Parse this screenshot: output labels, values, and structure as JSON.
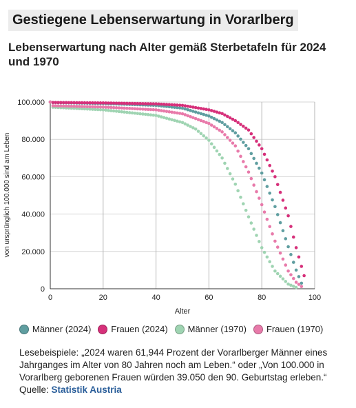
{
  "title": "Gestiegene Lebenserwartung in Vorarlberg",
  "subtitle": "Lebenserwartung nach Alter gemäß Sterbetafeln für 2024 und 1970",
  "note": {
    "text": "Lesebeispiele: „2024 waren 61,944 Prozent der Vorarlberger Männer eines Jahrganges im Alter von 80 Jahren noch am Leben.“ oder „Von 100.000 in Vorarlberg geborenen Frauen würden 39.050 den 90. Geburtstag erleben.“ Quelle: ",
    "source": "Statistik Austria"
  },
  "chart_data": {
    "type": "scatter",
    "xlabel": "Alter",
    "ylabel": "von ursprünglich 100.000 sind am Leben",
    "xlim": [
      0,
      100
    ],
    "ylim": [
      0,
      100000
    ],
    "xticks": [
      "0",
      "20",
      "40",
      "60",
      "80",
      "100"
    ],
    "yticks": [
      "0",
      "20.000",
      "40.000",
      "60.000",
      "80.000",
      "100.000"
    ],
    "grid": true,
    "legend_position": "bottom",
    "series": [
      {
        "name": "Männer (2024)",
        "color": "#5f9ea0",
        "knots": [
          [
            0,
            100000
          ],
          [
            1,
            99700
          ],
          [
            20,
            99200
          ],
          [
            40,
            98200
          ],
          [
            50,
            96700
          ],
          [
            60,
            92500
          ],
          [
            65,
            89000
          ],
          [
            70,
            83500
          ],
          [
            75,
            75000
          ],
          [
            80,
            61944
          ],
          [
            85,
            44000
          ],
          [
            90,
            22500
          ],
          [
            93,
            10000
          ],
          [
            95,
            3000
          ]
        ]
      },
      {
        "name": "Frauen (2024)",
        "color": "#d6307a",
        "knots": [
          [
            0,
            100000
          ],
          [
            1,
            99750
          ],
          [
            20,
            99500
          ],
          [
            40,
            99000
          ],
          [
            50,
            98200
          ],
          [
            60,
            95800
          ],
          [
            65,
            93800
          ],
          [
            70,
            90000
          ],
          [
            75,
            85000
          ],
          [
            80,
            75000
          ],
          [
            85,
            60000
          ],
          [
            90,
            39050
          ],
          [
            93,
            22000
          ],
          [
            95,
            12000
          ],
          [
            96,
            7000
          ]
        ]
      },
      {
        "name": "Männer (1970)",
        "color": "#9fd4b2",
        "knots": [
          [
            0,
            100000
          ],
          [
            1,
            97200
          ],
          [
            20,
            95800
          ],
          [
            40,
            92800
          ],
          [
            50,
            89000
          ],
          [
            55,
            85500
          ],
          [
            60,
            79500
          ],
          [
            65,
            70000
          ],
          [
            70,
            56000
          ],
          [
            75,
            38500
          ],
          [
            80,
            22000
          ],
          [
            85,
            9500
          ],
          [
            90,
            2500
          ],
          [
            93,
            700
          ]
        ]
      },
      {
        "name": "Frauen (1970)",
        "color": "#e87aaa",
        "knots": [
          [
            0,
            100000
          ],
          [
            1,
            98000
          ],
          [
            20,
            97300
          ],
          [
            40,
            95800
          ],
          [
            50,
            93700
          ],
          [
            60,
            88500
          ],
          [
            65,
            84000
          ],
          [
            70,
            76500
          ],
          [
            75,
            62500
          ],
          [
            80,
            45000
          ],
          [
            85,
            25500
          ],
          [
            90,
            9500
          ],
          [
            93,
            3500
          ],
          [
            95,
            1200
          ]
        ]
      }
    ]
  }
}
